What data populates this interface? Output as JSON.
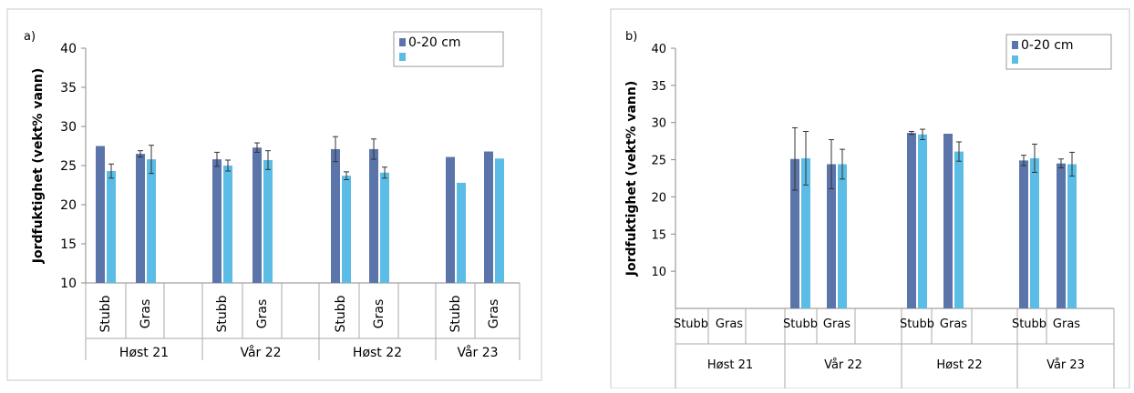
{
  "chart_data": [
    {
      "panel_label": "a)",
      "type": "bar",
      "ylabel": "Jordfuktighet (vekt% vann)",
      "ylim": [
        10,
        40
      ],
      "yticks": [
        10,
        15,
        20,
        25,
        30,
        35,
        40
      ],
      "groups": [
        "Høst 21",
        "Vår 22",
        "Høst 22",
        "Vår 23"
      ],
      "categories": [
        "Stubb",
        "Gras",
        "Stubb",
        "Gras",
        "Stubb",
        "Gras",
        "Stubb",
        "Gras"
      ],
      "group_of_category": [
        0,
        0,
        1,
        1,
        2,
        2,
        3,
        3
      ],
      "category_orientation": "vertical",
      "legend_position": "top-right",
      "series": [
        {
          "name": "0-20 cm",
          "color": "#5b74aa",
          "values": [
            27.5,
            26.5,
            25.8,
            27.3,
            27.1,
            27.1,
            26.1,
            26.8
          ],
          "errors": [
            0.0,
            0.4,
            0.9,
            0.6,
            1.6,
            1.3,
            0.0,
            0.0
          ]
        },
        {
          "name": "",
          "color": "#5bbde6",
          "values": [
            24.3,
            25.8,
            25.0,
            25.7,
            23.7,
            24.1,
            22.8,
            25.9
          ],
          "errors": [
            0.9,
            1.8,
            0.7,
            1.2,
            0.5,
            0.7,
            0.0,
            0.0
          ]
        }
      ]
    },
    {
      "panel_label": "b)",
      "type": "bar",
      "ylabel": "Jordfuktighet (vekt% vann)",
      "ylim": [
        5,
        40
      ],
      "yticks": [
        10,
        15,
        20,
        25,
        30,
        35,
        40
      ],
      "groups": [
        "Høst 21",
        "Vår 22",
        "Høst 22",
        "Vår 23"
      ],
      "categories": [
        "Stubb",
        "Gras",
        "Stubb",
        "Gras",
        "Stubb",
        "Gras",
        "Stubb",
        "Gras"
      ],
      "group_of_category": [
        0,
        0,
        1,
        1,
        2,
        2,
        3,
        3
      ],
      "category_orientation": "horizontal",
      "legend_position": "top-right",
      "series": [
        {
          "name": "0-20 cm",
          "color": "#5b74aa",
          "values": [
            null,
            null,
            25.1,
            24.4,
            28.6,
            28.5,
            24.9,
            24.5
          ],
          "errors": [
            0,
            0,
            4.2,
            3.3,
            0.2,
            0.0,
            0.7,
            0.6
          ]
        },
        {
          "name": "",
          "color": "#5bbde6",
          "values": [
            null,
            null,
            25.2,
            24.4,
            28.4,
            26.1,
            25.2,
            24.4
          ],
          "errors": [
            0,
            0,
            3.6,
            2.0,
            0.7,
            1.3,
            1.9,
            1.6
          ]
        }
      ]
    }
  ]
}
